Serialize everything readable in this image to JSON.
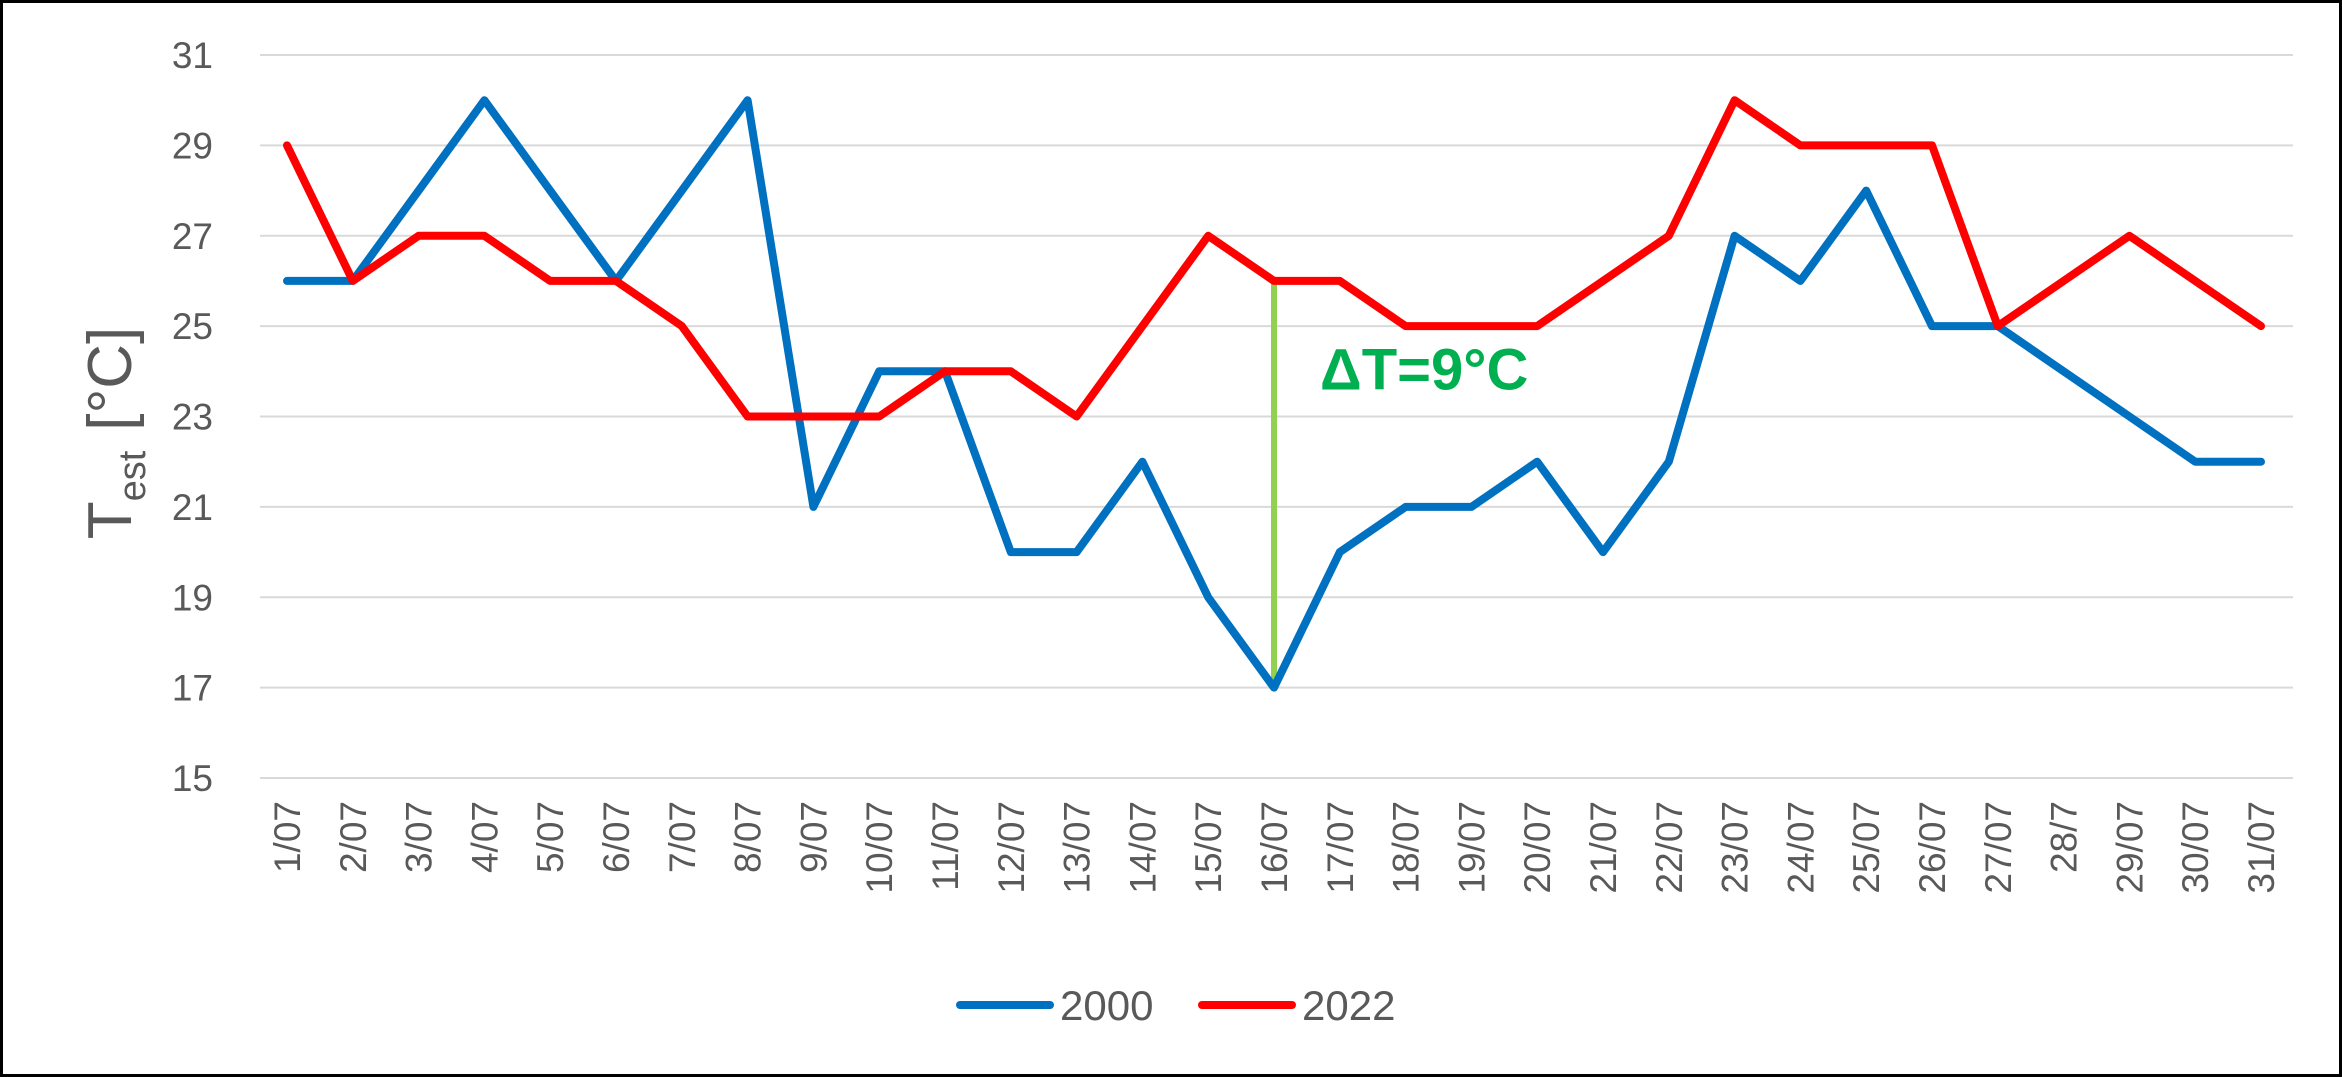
{
  "chart_data": {
    "type": "line",
    "xlabel": "",
    "ylabel": {
      "main": "T",
      "subscript": "est",
      "unit": "[°C]"
    },
    "ylim": [
      15,
      31
    ],
    "yticks": [
      15,
      17,
      19,
      21,
      23,
      25,
      27,
      29,
      31
    ],
    "grid": true,
    "legend_position": "bottom",
    "categories": [
      "1/07",
      "2/07",
      "3/07",
      "4/07",
      "5/07",
      "6/07",
      "7/07",
      "8/07",
      "9/07",
      "10/07",
      "11/07",
      "12/07",
      "13/07",
      "14/07",
      "15/07",
      "16/07",
      "17/07",
      "18/07",
      "19/07",
      "20/07",
      "21/07",
      "22/07",
      "23/07",
      "24/07",
      "25/07",
      "26/07",
      "27/07",
      "28/7",
      "29/07",
      "30/07",
      "31/07"
    ],
    "series": [
      {
        "name": "2000",
        "color": "#0070c0",
        "values": [
          26,
          26,
          28,
          30,
          28,
          26,
          28,
          30,
          21,
          24,
          24,
          20,
          20,
          22,
          19,
          17,
          20,
          21,
          21,
          22,
          20,
          22,
          27,
          26,
          28,
          25,
          25,
          24,
          23,
          22,
          22
        ]
      },
      {
        "name": "2022",
        "color": "#ff0000",
        "values": [
          29,
          26,
          27,
          27,
          26,
          26,
          25,
          23,
          23,
          23,
          24,
          24,
          23,
          25,
          27,
          26,
          26,
          25,
          25,
          25,
          26,
          27,
          30,
          29,
          29,
          29,
          25,
          26,
          27,
          26,
          25
        ]
      }
    ],
    "annotations": [
      {
        "text": "ΔT=9°C",
        "color": "#00b050",
        "line_color": "#92d050",
        "category": "16/07",
        "from": 17,
        "to": 26
      }
    ]
  }
}
